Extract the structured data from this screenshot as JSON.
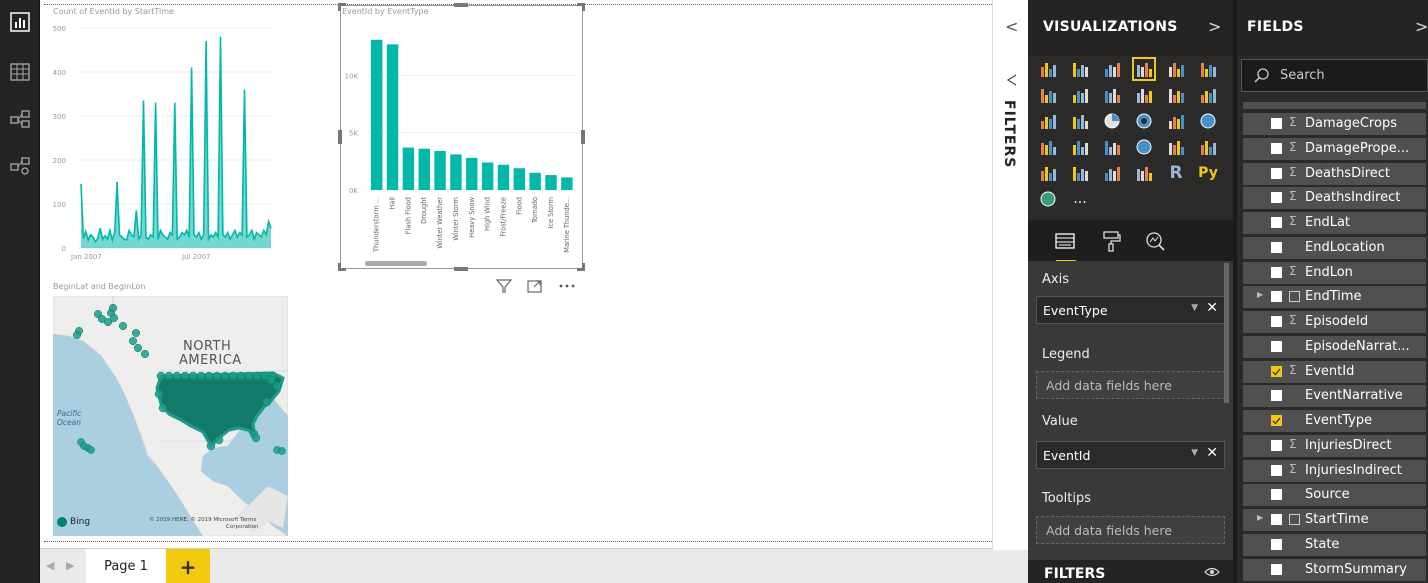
{
  "left_rail": {
    "icons": [
      "report-view-icon",
      "data-view-icon",
      "model-view-icon",
      "relationships-view-icon"
    ]
  },
  "charts": {
    "line_title": "Count of EventId by StartTime",
    "bar_title": "EventId by EventType",
    "map_title": "BeginLat and BeginLon"
  },
  "chart_data": [
    {
      "type": "line",
      "title": "Count of EventId by StartTime",
      "xlabel": "",
      "ylabel": "",
      "ylim": [
        0,
        500
      ],
      "y_ticks": [
        "0",
        "100",
        "200",
        "300",
        "400",
        "500"
      ],
      "x_ticks": [
        "Jan 2007",
        "Jul 2007"
      ],
      "series": [
        {
          "values": [
            145,
            22,
            38,
            18,
            30,
            25,
            14,
            22,
            45,
            20,
            28,
            20,
            40,
            18,
            35,
            150,
            30,
            25,
            20,
            18,
            40,
            30,
            25,
            85,
            20,
            30,
            335,
            25,
            20,
            30,
            25,
            330,
            20,
            40,
            30,
            25,
            20,
            35,
            30,
            330,
            20,
            25,
            35,
            30,
            40,
            25,
            410,
            30,
            25,
            35,
            20,
            30,
            470,
            20,
            30,
            25,
            35,
            25,
            480,
            30,
            25,
            35,
            20,
            30,
            40,
            25,
            35,
            30,
            360,
            25,
            30,
            40,
            20,
            35,
            30,
            25,
            40,
            30,
            60,
            45
          ]
        }
      ],
      "color": "#01b8aa"
    },
    {
      "type": "bar",
      "title": "EventId by EventType",
      "categories": [
        "Thunderstorm ...",
        "Hail",
        "Flash Flood",
        "Drought",
        "Winter Weather",
        "Winter Storm",
        "Heavy Snow",
        "High Wind",
        "Frost/Freeze",
        "Flood",
        "Tornado",
        "Ice Storm",
        "Marine Thunde..."
      ],
      "values": [
        13100,
        12700,
        3700,
        3600,
        3400,
        3100,
        2800,
        2400,
        2200,
        1900,
        1500,
        1300,
        1100
      ],
      "ylim": [
        0,
        15000
      ],
      "y_ticks": [
        "0K",
        "5K",
        "10K"
      ],
      "color": "#01b8aa"
    }
  ],
  "map": {
    "labels": [
      "NORTH",
      "AMERICA"
    ],
    "ocean": [
      "Pacific",
      "Ocean"
    ],
    "bing": "Bing",
    "copyright": [
      "© 2019 HERE, © 2019 Microsoft",
      "Terms",
      "Corporation"
    ]
  },
  "visual_header_icons": [
    "filter-icon",
    "focus-mode-icon",
    "more-options-icon"
  ],
  "pages": {
    "tab": "Page 1",
    "add": "+",
    "prev": "◀",
    "next": "▶"
  },
  "filters_collapsed": {
    "label": "FILTERS",
    "chevron": "<"
  },
  "visualizations": {
    "title": "VISUALIZATIONS",
    "chevron": ">",
    "selected_icon": "clustered-column-chart-icon",
    "more": "...",
    "r_label": "R",
    "py_label": "Py",
    "wells": {
      "axis_label": "Axis",
      "axis_value": "EventType",
      "legend_label": "Legend",
      "legend_placeholder": "Add data fields here",
      "value_label": "Value",
      "value_value": "EventId",
      "tooltips_label": "Tooltips",
      "tooltips_placeholder": "Add data fields here"
    },
    "filters_label": "FILTERS"
  },
  "fields": {
    "title": "FIELDS",
    "chevron": ">",
    "search_placeholder": "Search",
    "items": [
      {
        "name": "DamageCrops",
        "sigma": true,
        "checked": false,
        "expand": false
      },
      {
        "name": "DamagePrope...",
        "sigma": true,
        "checked": false,
        "expand": false
      },
      {
        "name": "DeathsDirect",
        "sigma": true,
        "checked": false,
        "expand": false
      },
      {
        "name": "DeathsIndirect",
        "sigma": true,
        "checked": false,
        "expand": false
      },
      {
        "name": "EndLat",
        "sigma": true,
        "checked": false,
        "expand": false
      },
      {
        "name": "EndLocation",
        "sigma": false,
        "checked": false,
        "expand": false
      },
      {
        "name": "EndLon",
        "sigma": true,
        "checked": false,
        "expand": false
      },
      {
        "name": "EndTime",
        "sigma": false,
        "checked": false,
        "expand": true
      },
      {
        "name": "EpisodeId",
        "sigma": true,
        "checked": false,
        "expand": false
      },
      {
        "name": "EpisodeNarrat...",
        "sigma": false,
        "checked": false,
        "expand": false
      },
      {
        "name": "EventId",
        "sigma": true,
        "checked": true,
        "expand": false
      },
      {
        "name": "EventNarrative",
        "sigma": false,
        "checked": false,
        "expand": false
      },
      {
        "name": "EventType",
        "sigma": false,
        "checked": true,
        "expand": false
      },
      {
        "name": "InjuriesDirect",
        "sigma": true,
        "checked": false,
        "expand": false
      },
      {
        "name": "InjuriesIndirect",
        "sigma": true,
        "checked": false,
        "expand": false
      },
      {
        "name": "Source",
        "sigma": false,
        "checked": false,
        "expand": false
      },
      {
        "name": "StartTime",
        "sigma": false,
        "checked": false,
        "expand": true
      },
      {
        "name": "State",
        "sigma": false,
        "checked": false,
        "expand": false
      },
      {
        "name": "StormSummary",
        "sigma": false,
        "checked": false,
        "expand": false
      }
    ]
  },
  "colors": {
    "accent": "#f2c811",
    "series": "#01b8aa",
    "map_water": "#a9cfe0",
    "map_land": "#eeeeec"
  }
}
